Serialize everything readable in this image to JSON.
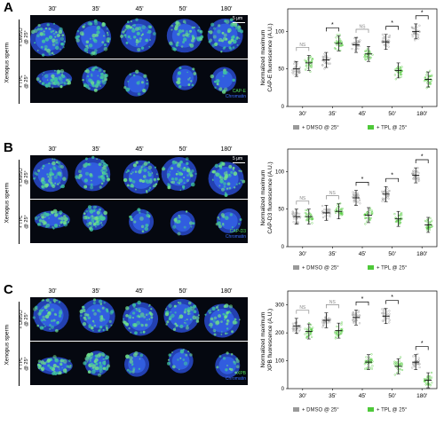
{
  "panels": [
    {
      "label": "A",
      "timepoints": [
        "30'",
        "35'",
        "45'",
        "50'",
        "180'"
      ],
      "species": "Xenopus sperm",
      "conditions": [
        "+ DMSO\n@ 25°",
        "+ TPL\n@ 25°"
      ],
      "scale_bar": "5 μm",
      "stains": [
        "CAP-E",
        "Chromatin"
      ],
      "stain_colors": [
        "#52e05a",
        "#3a6cff"
      ],
      "chart_ylabel": "Normalized maximum\nCAP-E fluorescence (A.U.)",
      "significance": [
        "NS",
        "*",
        "NS",
        "*",
        "*"
      ]
    },
    {
      "label": "B",
      "timepoints": [
        "30'",
        "35'",
        "45'",
        "50'",
        "180'"
      ],
      "species": "Xenopus sperm",
      "conditions": [
        "+ DMSO\n@ 25°",
        "+ TPL\n@ 25°"
      ],
      "scale_bar": "5 μm",
      "stains": [
        "CAP-D3",
        "Chromatin"
      ],
      "stain_colors": [
        "#52e05a",
        "#3a6cff"
      ],
      "chart_ylabel": "Normalized maximum\nCAP-D3 fluorescence (A.U.)",
      "significance": [
        "NS",
        "NS",
        "*",
        "*",
        "*"
      ]
    },
    {
      "label": "C",
      "timepoints": [
        "30'",
        "35'",
        "45'",
        "50'",
        "180'"
      ],
      "species": "Xenopus sperm",
      "conditions": [
        "+ DMSO\n@ 25°",
        "+ TPL\n@ 25°"
      ],
      "scale_bar": "",
      "stains": [
        "XPB",
        "Chromatin"
      ],
      "stain_colors": [
        "#52e05a",
        "#3a6cff"
      ],
      "chart_ylabel": "Normalized maximum\nXPB fluorescence (A.U.)",
      "significance": [
        "NS",
        "NS",
        "*",
        "*",
        "*"
      ]
    }
  ],
  "chart_data": [
    {
      "type": "scatter",
      "categories": [
        "30'",
        "35'",
        "45'",
        "50'",
        "180'"
      ],
      "ylim": [
        0,
        130
      ],
      "yticks": [
        0,
        50,
        100
      ],
      "series": [
        {
          "name": "+ DMSO @ 25°",
          "color": "#9a9a9a",
          "means": [
            50,
            62,
            82,
            86,
            100
          ]
        },
        {
          "name": "+ TPL @ 25°",
          "color": "#4fc93a",
          "means": [
            58,
            84,
            70,
            48,
            36
          ]
        }
      ],
      "legend": "bottom"
    },
    {
      "type": "scatter",
      "categories": [
        "30'",
        "35'",
        "45'",
        "50'",
        "180'"
      ],
      "ylim": [
        0,
        130
      ],
      "yticks": [
        0,
        50,
        100
      ],
      "series": [
        {
          "name": "+ DMSO @ 25°",
          "color": "#9a9a9a",
          "means": [
            40,
            45,
            65,
            70,
            95
          ]
        },
        {
          "name": "+ TPL @ 25°",
          "color": "#4fc93a",
          "means": [
            40,
            47,
            42,
            37,
            29
          ]
        }
      ],
      "legend": "bottom"
    },
    {
      "type": "scatter",
      "categories": [
        "30'",
        "35'",
        "45'",
        "50'",
        "180'"
      ],
      "ylim": [
        0,
        350
      ],
      "yticks": [
        0,
        100,
        200,
        300
      ],
      "series": [
        {
          "name": "+ DMSO @ 25°",
          "color": "#9a9a9a",
          "means": [
            225,
            245,
            255,
            260,
            95
          ]
        },
        {
          "name": "+ TPL @ 25°",
          "color": "#4fc93a",
          "means": [
            205,
            208,
            95,
            80,
            30
          ]
        }
      ],
      "legend": "bottom"
    }
  ]
}
